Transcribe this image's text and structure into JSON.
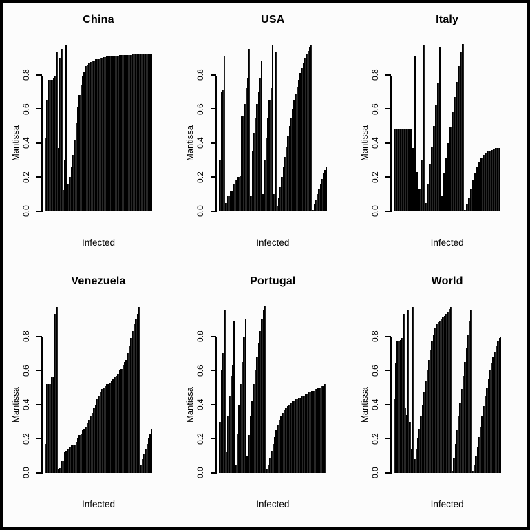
{
  "figure": {
    "layout": "2x3 grid of barplots",
    "colors": {
      "background": "#fcfcfc",
      "frame": "#000000",
      "bars": "#000000",
      "text": "#000000"
    }
  },
  "chart_data": [
    {
      "type": "bar",
      "title": "China",
      "xlabel": "Infected",
      "ylabel": "Mantissa",
      "ylim": [
        0,
        1.0
      ],
      "yticks": [
        0,
        0.2,
        0.4,
        0.6,
        0.8
      ],
      "ytick_labels": [
        "0.0",
        "0.2",
        "0.4",
        "0.6",
        "0.8"
      ],
      "grid": false,
      "legend": false,
      "values": [
        0.43,
        0.65,
        0.77,
        0.77,
        0.77,
        0.78,
        0.79,
        0.93,
        0.37,
        0.9,
        0.95,
        0.125,
        0.3,
        0.97,
        0.16,
        0.2,
        0.26,
        0.33,
        0.42,
        0.52,
        0.61,
        0.68,
        0.74,
        0.79,
        0.82,
        0.85,
        0.86,
        0.87,
        0.875,
        0.88,
        0.885,
        0.89,
        0.893,
        0.896,
        0.899,
        0.901,
        0.903,
        0.905,
        0.907,
        0.908,
        0.909,
        0.91,
        0.911,
        0.912,
        0.913,
        0.913,
        0.914,
        0.914,
        0.915,
        0.915,
        0.916,
        0.916,
        0.917,
        0.917,
        0.918,
        0.918,
        0.918,
        0.919,
        0.919,
        0.919,
        0.92,
        0.92,
        0.92,
        0.92,
        0.92,
        0.92,
        0.92
      ]
    },
    {
      "type": "bar",
      "title": "USA",
      "xlabel": "Infected",
      "ylabel": "Mantissa",
      "ylim": [
        0,
        1.0
      ],
      "yticks": [
        0,
        0.2,
        0.4,
        0.6,
        0.8
      ],
      "ytick_labels": [
        "0.0",
        "0.2",
        "0.4",
        "0.6",
        "0.8"
      ],
      "grid": false,
      "legend": false,
      "values": [
        0.3,
        0.7,
        0.71,
        0.91,
        0.05,
        0.09,
        0.09,
        0.12,
        0.12,
        0.16,
        0.18,
        0.18,
        0.2,
        0.21,
        0.56,
        0.56,
        0.63,
        0.72,
        0.78,
        0.95,
        0.09,
        0.35,
        0.46,
        0.55,
        0.63,
        0.7,
        0.78,
        0.88,
        0.1,
        0.3,
        0.43,
        0.55,
        0.65,
        0.72,
        0.97,
        0.1,
        0.93,
        0.03,
        0.08,
        0.14,
        0.2,
        0.26,
        0.32,
        0.38,
        0.44,
        0.5,
        0.55,
        0.6,
        0.65,
        0.69,
        0.73,
        0.77,
        0.81,
        0.84,
        0.87,
        0.9,
        0.92,
        0.94,
        0.96,
        0.97,
        0.01,
        0.04,
        0.07,
        0.1,
        0.13,
        0.16,
        0.19,
        0.22,
        0.24,
        0.26
      ]
    },
    {
      "type": "bar",
      "title": "Italy",
      "xlabel": "Infected",
      "ylabel": "Mantissa",
      "ylim": [
        0,
        1.0
      ],
      "yticks": [
        0,
        0.2,
        0.4,
        0.6,
        0.8
      ],
      "ytick_labels": [
        "0.0",
        "0.2",
        "0.4",
        "0.6",
        "0.8"
      ],
      "grid": false,
      "legend": false,
      "values": [
        0.48,
        0.48,
        0.48,
        0.48,
        0.48,
        0.48,
        0.48,
        0.48,
        0.48,
        0.37,
        0.91,
        0.23,
        0.13,
        0.3,
        0.97,
        0.05,
        0.16,
        0.28,
        0.38,
        0.5,
        0.62,
        0.75,
        0.96,
        0.09,
        0.22,
        0.31,
        0.4,
        0.49,
        0.58,
        0.67,
        0.76,
        0.85,
        0.93,
        0.98,
        0.01,
        0.04,
        0.08,
        0.13,
        0.18,
        0.22,
        0.26,
        0.29,
        0.31,
        0.33,
        0.34,
        0.35,
        0.355,
        0.36,
        0.365,
        0.37,
        0.37,
        0.37
      ]
    },
    {
      "type": "bar",
      "title": "Venezuela",
      "xlabel": "Infected",
      "ylabel": "Mantissa",
      "ylim": [
        0,
        1.0
      ],
      "yticks": [
        0,
        0.2,
        0.4,
        0.6,
        0.8
      ],
      "ytick_labels": [
        "0.0",
        "0.2",
        "0.4",
        "0.6",
        "0.8"
      ],
      "grid": false,
      "legend": false,
      "values": [
        0.17,
        0.52,
        0.52,
        0.52,
        0.56,
        0.56,
        0.93,
        0.97,
        0.02,
        0.03,
        0.07,
        0.07,
        0.12,
        0.13,
        0.14,
        0.15,
        0.16,
        0.16,
        0.16,
        0.18,
        0.2,
        0.22,
        0.23,
        0.25,
        0.26,
        0.27,
        0.29,
        0.31,
        0.33,
        0.35,
        0.38,
        0.4,
        0.43,
        0.45,
        0.47,
        0.49,
        0.5,
        0.51,
        0.52,
        0.52,
        0.53,
        0.54,
        0.55,
        0.56,
        0.57,
        0.58,
        0.6,
        0.61,
        0.63,
        0.65,
        0.66,
        0.7,
        0.74,
        0.79,
        0.83,
        0.87,
        0.9,
        0.93,
        0.97,
        0.05,
        0.08,
        0.11,
        0.14,
        0.17,
        0.2,
        0.23,
        0.26
      ]
    },
    {
      "type": "bar",
      "title": "Portugal",
      "xlabel": "Infected",
      "ylabel": "Mantissa",
      "ylim": [
        0,
        1.0
      ],
      "yticks": [
        0,
        0.2,
        0.4,
        0.6,
        0.8
      ],
      "ytick_labels": [
        "0.0",
        "0.2",
        "0.4",
        "0.6",
        "0.8"
      ],
      "grid": false,
      "legend": false,
      "values": [
        0.3,
        0.6,
        0.7,
        0.95,
        0.12,
        0.33,
        0.45,
        0.57,
        0.63,
        0.89,
        0.05,
        0.23,
        0.4,
        0.52,
        0.65,
        0.8,
        0.9,
        0.1,
        0.22,
        0.33,
        0.42,
        0.52,
        0.6,
        0.68,
        0.76,
        0.83,
        0.9,
        0.95,
        0.98,
        0.02,
        0.05,
        0.09,
        0.13,
        0.17,
        0.21,
        0.25,
        0.28,
        0.31,
        0.33,
        0.35,
        0.37,
        0.38,
        0.39,
        0.4,
        0.41,
        0.42,
        0.42,
        0.43,
        0.43,
        0.44,
        0.44,
        0.45,
        0.45,
        0.46,
        0.46,
        0.47,
        0.47,
        0.48,
        0.48,
        0.49,
        0.49,
        0.5,
        0.5,
        0.51,
        0.51,
        0.52,
        0.52
      ]
    },
    {
      "type": "bar",
      "title": "World",
      "xlabel": "Infected",
      "ylabel": "Mantissa",
      "ylim": [
        0,
        1.0
      ],
      "yticks": [
        0,
        0.2,
        0.4,
        0.6,
        0.8
      ],
      "ytick_labels": [
        "0.0",
        "0.2",
        "0.4",
        "0.6",
        "0.8"
      ],
      "grid": false,
      "legend": false,
      "values": [
        0.43,
        0.645,
        0.77,
        0.77,
        0.78,
        0.79,
        0.93,
        0.38,
        0.34,
        0.95,
        0.3,
        0.14,
        0.97,
        0.08,
        0.14,
        0.2,
        0.26,
        0.33,
        0.4,
        0.47,
        0.54,
        0.6,
        0.66,
        0.72,
        0.77,
        0.81,
        0.85,
        0.87,
        0.885,
        0.89,
        0.9,
        0.91,
        0.92,
        0.93,
        0.945,
        0.96,
        0.97,
        0.01,
        0.09,
        0.17,
        0.25,
        0.33,
        0.41,
        0.49,
        0.57,
        0.65,
        0.73,
        0.81,
        0.89,
        0.95,
        0.01,
        0.05,
        0.1,
        0.15,
        0.21,
        0.27,
        0.33,
        0.39,
        0.45,
        0.5,
        0.55,
        0.6,
        0.64,
        0.68,
        0.71,
        0.74,
        0.77,
        0.79,
        0.8
      ]
    }
  ]
}
